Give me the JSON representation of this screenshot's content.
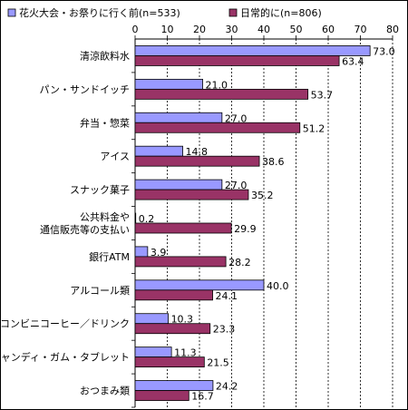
{
  "chart_data": {
    "type": "bar",
    "orientation": "horizontal",
    "categories": [
      "清涼飲料水",
      "パン・サンドイッチ",
      "弁当・惣菜",
      "アイス",
      "スナック菓子",
      "公共料金や\n通信販売等の支払い",
      "銀行ATM",
      "アルコール類",
      "コンビニコーヒー／ドリンク",
      "キャンディ・ガム・タブレット",
      "おつまみ類"
    ],
    "series": [
      {
        "name": "花火大会・お祭りに行く前(n=533)",
        "color": "#9999ff",
        "values": [
          73.0,
          21.0,
          27.0,
          14.8,
          27.0,
          0.2,
          3.9,
          40.0,
          10.3,
          11.3,
          24.2
        ],
        "labels": [
          "73.0",
          "21.0",
          "27.0",
          "14.8",
          "27.0",
          "0.2",
          "3.9",
          "40.0",
          "10.3",
          "11.3",
          "24.2"
        ]
      },
      {
        "name": "日常的に(n=806)",
        "color": "#993366",
        "values": [
          63.4,
          53.7,
          51.2,
          38.6,
          35.2,
          29.9,
          28.2,
          24.1,
          23.3,
          21.5,
          16.7
        ],
        "labels": [
          "63.4",
          "53.7",
          "51.2",
          "38.6",
          "35.2",
          "29.9",
          "28.2",
          "24.1",
          "23.3",
          "21.5",
          "16.7"
        ]
      }
    ],
    "xlim": [
      0,
      80
    ],
    "ticks": [
      "0",
      "10",
      "20",
      "30",
      "40",
      "50",
      "60",
      "70",
      "80"
    ],
    "grid": true,
    "legend": "top"
  }
}
